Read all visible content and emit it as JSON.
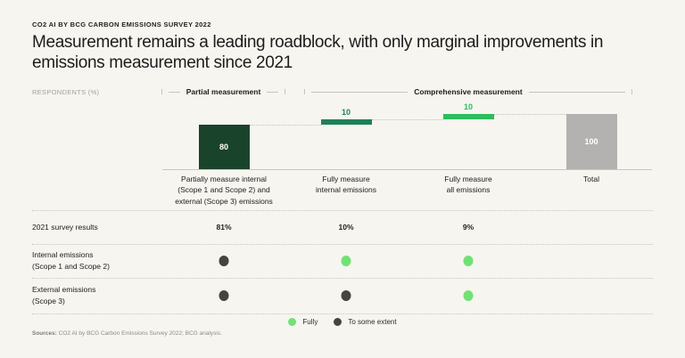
{
  "header": {
    "eyebrow": "CO2 AI BY BCG CARBON EMISSIONS SURVEY 2022",
    "title": "Measurement remains a leading roadblock, with only marginal improvements in emissions measurement since 2021"
  },
  "axis_label": "RESPONDENTS (%)",
  "brackets": [
    {
      "label": "Partial measurement"
    },
    {
      "label": "Comprehensive measurement"
    }
  ],
  "chart_data": {
    "type": "bar",
    "subtype": "waterfall",
    "title": "",
    "xlabel": "",
    "ylabel": "RESPONDENTS (%)",
    "ylim": [
      0,
      100
    ],
    "grid": false,
    "categories": [
      "Partially measure internal\n(Scope 1 and Scope 2) and\nexternal (Scope 3) emissions",
      "Fully measure\ninternal emissions",
      "Fully measure\nall emissions",
      "Total"
    ],
    "values": [
      80,
      10,
      10,
      100
    ],
    "bar_roles": [
      "segment",
      "segment",
      "segment",
      "total"
    ],
    "bar_colors": [
      "#1a432b",
      "#1f8156",
      "#2cbd5c",
      "#b3b2b0"
    ],
    "value_label_positions": [
      "inside",
      "above",
      "above",
      "inside"
    ],
    "value_label_colors": [
      "#ffffff",
      "#1f8156",
      "#2cbd5c",
      "#ffffff"
    ]
  },
  "comparison_rows": [
    {
      "label": "2021 survey results",
      "type": "text",
      "values": [
        "81%",
        "10%",
        "9%",
        ""
      ]
    },
    {
      "label": "Internal emissions\n(Scope 1 and Scope 2)",
      "type": "dots",
      "values": [
        "to-some-extent",
        "fully",
        "fully",
        ""
      ]
    },
    {
      "label": "External emissions\n(Scope 3)",
      "type": "dots",
      "values": [
        "to-some-extent",
        "to-some-extent",
        "fully",
        ""
      ]
    }
  ],
  "legend": [
    {
      "key": "fully",
      "label": "Fully",
      "color": "#72e175"
    },
    {
      "key": "to-some-extent",
      "label": "To some extent",
      "color": "#464440"
    }
  ],
  "footer": {
    "sources_label": "Sources:",
    "sources_text": "CO2 AI by BCG Carbon Emissions Survey 2022; BCG analysis."
  }
}
